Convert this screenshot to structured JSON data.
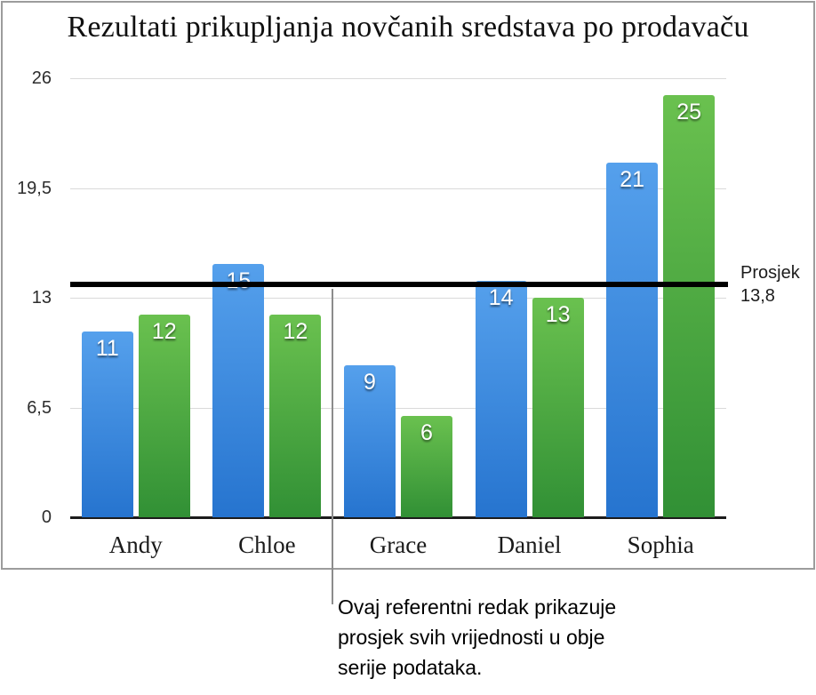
{
  "title": "Rezultati prikupljanja novčanih sredstava po prodavaču",
  "chart_data": {
    "type": "bar",
    "title": "Rezultati prikupljanja novčanih sredstava po prodavaču",
    "categories": [
      "Andy",
      "Chloe",
      "Grace",
      "Daniel",
      "Sophia"
    ],
    "series": [
      {
        "name": "series-blue",
        "color_top": "#55a0ec",
        "color_bottom": "#2674cf",
        "values": [
          11,
          15,
          9,
          14,
          21
        ]
      },
      {
        "name": "series-green",
        "color_top": "#6ac14f",
        "color_bottom": "#319035",
        "values": [
          12,
          12,
          6,
          13,
          25
        ]
      }
    ],
    "y_ticks": [
      "0",
      "6,5",
      "13",
      "19,5",
      "26"
    ],
    "y_tick_values": [
      0,
      6.5,
      13,
      19.5,
      26
    ],
    "ylim": [
      0,
      26
    ],
    "grid": true,
    "legend": "none",
    "reference_line": {
      "value": 13.8,
      "label_line1": "Prosjek",
      "label_line2": "13,8",
      "color": "#000000"
    }
  },
  "callout": {
    "text_lines": [
      "Ovaj referentni redak prikazuje",
      "prosjek svih vrijednosti u obje",
      "serije podataka."
    ]
  },
  "colors": {
    "gridline": "#dadada",
    "axis": "#1c1c1c",
    "leader_line": "#8c8c8c",
    "card_border": "#9c9c9c"
  }
}
